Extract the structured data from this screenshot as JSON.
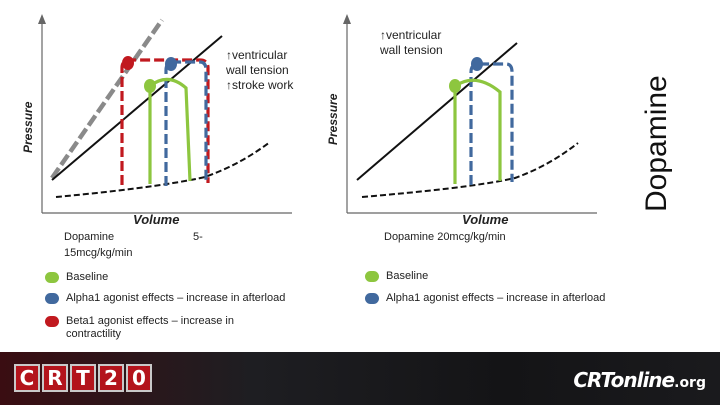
{
  "left_panel": {
    "y_label": "Pressure",
    "x_label": "Volume",
    "annotation_lines": [
      "↑ventricular",
      "wall tension",
      "↑stroke work"
    ],
    "dose_label": "Dopamine",
    "dose_suffix": "5-",
    "dose_unit": "15mcg/kg/min",
    "legend": [
      {
        "label": "Baseline",
        "color": "#8dc63f"
      },
      {
        "label": "Alpha1 agonist effects – increase in afterload",
        "color": "#41699e"
      },
      {
        "label": "Beta1 agonist effects – increase in contractility",
        "color": "#c1191f"
      }
    ]
  },
  "right_panel": {
    "y_label": "Pressure",
    "x_label": "Volume",
    "annotation_lines": [
      "↑ventricular",
      "wall tension"
    ],
    "dose_label": "Dopamine 20mcg/kg/min",
    "legend": [
      {
        "label": "Baseline",
        "color": "#8dc63f"
      },
      {
        "label": "Alpha1 agonist effects – increase in afterload",
        "color": "#41699e"
      }
    ]
  },
  "side_title": "Dopamine",
  "colors": {
    "baseline": "#8dc63f",
    "alpha": "#41699e",
    "beta": "#c1191f",
    "espvr_beta": "#8a8a8a",
    "line": "#111111"
  },
  "footer": {
    "left_logo": [
      "C",
      "R",
      "T",
      "2",
      "0"
    ],
    "right_logo_main": "CRTonline",
    "right_logo_suffix": ".org"
  }
}
